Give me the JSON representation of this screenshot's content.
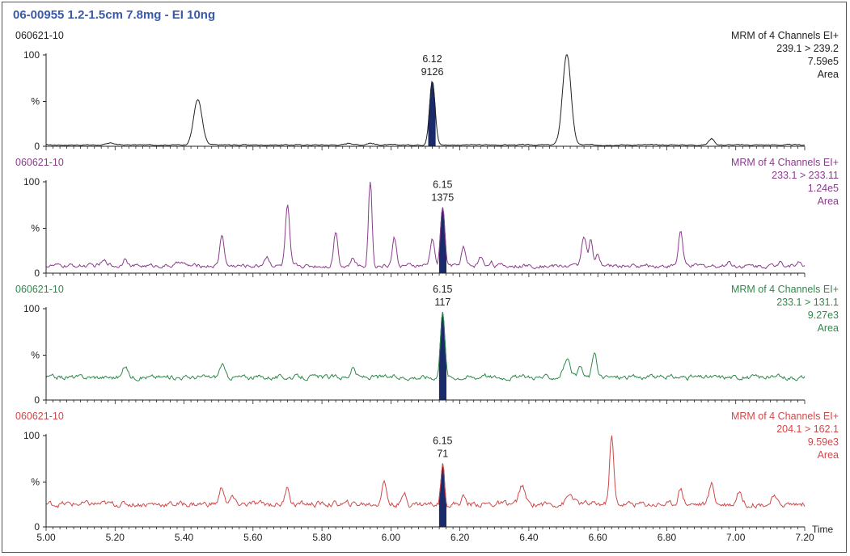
{
  "header": {
    "title": "06-00955 1.2-1.5cm 7.8mg - EI 10ng"
  },
  "chart_data": [
    {
      "type": "line",
      "sample_id": "060621-10",
      "info": [
        "MRM of 4 Channels EI+",
        "239.1 > 239.2",
        "7.59e5",
        "Area"
      ],
      "color": "#222222",
      "peak_fill": "#1a2a6a",
      "peak_label": [
        "6.12",
        "9126"
      ],
      "peak_rt": 6.12,
      "ytick_labels": [
        "100",
        "%",
        "0"
      ],
      "baseline": 1.5,
      "noise": 0.6,
      "peaks": [
        [
          5.19,
          2,
          0.01
        ],
        [
          5.44,
          50,
          0.012
        ],
        [
          5.88,
          2,
          0.01
        ],
        [
          5.94,
          2,
          0.01
        ],
        [
          6.12,
          70,
          0.008
        ],
        [
          6.51,
          100,
          0.012
        ],
        [
          6.93,
          7,
          0.008
        ]
      ],
      "xlim": [
        5.0,
        7.2
      ]
    },
    {
      "type": "line",
      "sample_id": "060621-10",
      "info": [
        "MRM of 4 Channels EI+",
        "233.1 > 233.11",
        "1.24e5",
        "Area"
      ],
      "color": "#8a3c8c",
      "peak_fill": "#1a2a6a",
      "peak_label": [
        "6.15",
        "1375"
      ],
      "peak_rt": 6.15,
      "ytick_labels": [
        "100",
        "%",
        "0"
      ],
      "baseline": 8,
      "noise": 2.2,
      "peaks": [
        [
          5.17,
          5,
          0.01
        ],
        [
          5.23,
          10,
          0.006
        ],
        [
          5.39,
          5,
          0.008
        ],
        [
          5.51,
          35,
          0.006
        ],
        [
          5.64,
          10,
          0.008
        ],
        [
          5.7,
          65,
          0.006
        ],
        [
          5.84,
          38,
          0.006
        ],
        [
          5.89,
          8,
          0.006
        ],
        [
          5.94,
          97,
          0.005
        ],
        [
          6.01,
          30,
          0.006
        ],
        [
          6.12,
          30,
          0.006
        ],
        [
          6.15,
          65,
          0.006
        ],
        [
          6.21,
          20,
          0.006
        ],
        [
          6.26,
          10,
          0.006
        ],
        [
          6.29,
          5,
          0.006
        ],
        [
          6.56,
          34,
          0.007
        ],
        [
          6.58,
          28,
          0.005
        ],
        [
          6.6,
          12,
          0.005
        ],
        [
          6.84,
          39,
          0.006
        ],
        [
          6.98,
          5,
          0.006
        ],
        [
          7.13,
          8,
          0.005
        ],
        [
          7.18,
          5,
          0.006
        ]
      ],
      "xlim": [
        5.0,
        7.2
      ]
    },
    {
      "type": "line",
      "sample_id": "060621-10",
      "info": [
        "MRM of 4 Channels EI+",
        "233.1 > 131.1",
        "9.27e3",
        "Area"
      ],
      "color": "#2e8a4a",
      "peak_fill": "#1a2a6a",
      "peak_label": [
        "6.15",
        "117"
      ],
      "peak_rt": 6.15,
      "ytick_labels": [
        "100",
        "%",
        "0"
      ],
      "baseline": 25,
      "noise": 2.6,
      "peaks": [
        [
          5.23,
          12,
          0.007
        ],
        [
          5.51,
          14,
          0.007
        ],
        [
          5.89,
          10,
          0.007
        ],
        [
          6.15,
          75,
          0.006
        ],
        [
          6.27,
          5,
          0.006
        ],
        [
          6.51,
          18,
          0.01
        ],
        [
          6.55,
          10,
          0.006
        ],
        [
          6.59,
          28,
          0.006
        ]
      ],
      "xlim": [
        5.0,
        7.2
      ]
    },
    {
      "type": "line",
      "sample_id": "060621-10",
      "info": [
        "MRM of 4 Channels EI+",
        "204.1 > 162.1",
        "9.59e3",
        "Area"
      ],
      "color": "#d0484a",
      "peak_fill": "#1a2a6a",
      "peak_label": [
        "6.15",
        "71"
      ],
      "peak_rt": 6.15,
      "ytick_labels": [
        "100",
        "%",
        "0"
      ],
      "baseline": 25,
      "noise": 3.2,
      "peaks": [
        [
          5.51,
          18,
          0.007
        ],
        [
          5.54,
          8,
          0.005
        ],
        [
          5.7,
          20,
          0.006
        ],
        [
          5.98,
          24,
          0.007
        ],
        [
          6.04,
          12,
          0.006
        ],
        [
          6.15,
          45,
          0.005
        ],
        [
          6.21,
          8,
          0.006
        ],
        [
          6.38,
          20,
          0.008
        ],
        [
          6.52,
          10,
          0.01
        ],
        [
          6.64,
          74,
          0.006
        ],
        [
          6.84,
          17,
          0.007
        ],
        [
          6.93,
          22,
          0.007
        ],
        [
          7.01,
          15,
          0.007
        ],
        [
          7.11,
          8,
          0.006
        ]
      ],
      "xlim": [
        5.0,
        7.2
      ]
    }
  ],
  "xaxis": {
    "label": "Time",
    "ticks": [
      "5.00",
      "5.20",
      "5.40",
      "5.60",
      "5.80",
      "6.00",
      "6.20",
      "6.40",
      "6.60",
      "6.80",
      "7.00",
      "7.20"
    ]
  }
}
